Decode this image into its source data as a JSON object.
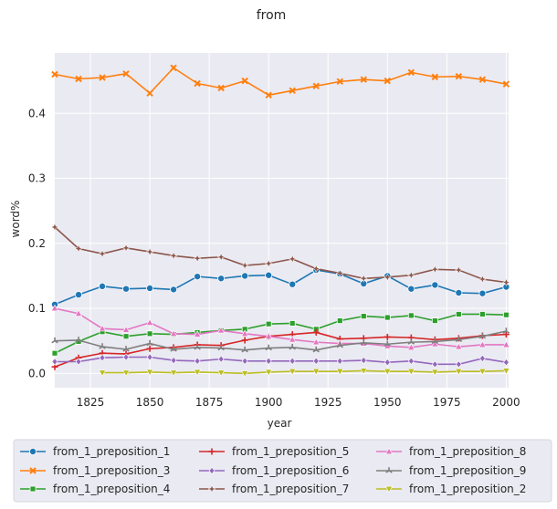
{
  "chart_data": {
    "type": "line",
    "title": "from",
    "xlabel": "year",
    "ylabel": "word%",
    "xlim": [
      1810,
      2001
    ],
    "ylim": [
      -0.022,
      0.493
    ],
    "xticks": [
      1825,
      1850,
      1875,
      1900,
      1925,
      1950,
      1975,
      2000
    ],
    "yticks": [
      0.0,
      0.1,
      0.2,
      0.3,
      0.4
    ],
    "ytick_labels": [
      "0.0",
      "0.1",
      "0.2",
      "0.3",
      "0.4"
    ],
    "grid": true,
    "background": "#eaeaf2",
    "legend_placement": "bottom-center",
    "legend_columns": 3,
    "x": [
      1810,
      1820,
      1830,
      1840,
      1850,
      1860,
      1870,
      1880,
      1890,
      1900,
      1910,
      1920,
      1930,
      1940,
      1950,
      1960,
      1970,
      1980,
      1990,
      2000
    ],
    "series": [
      {
        "name": "from_1_preposition_1",
        "color": "#1f77b4",
        "marker": "circle",
        "values": [
          0.106,
          0.121,
          0.134,
          0.13,
          0.131,
          0.129,
          0.149,
          0.146,
          0.15,
          0.151,
          0.137,
          0.159,
          0.153,
          0.138,
          0.15,
          0.13,
          0.136,
          0.124,
          0.123,
          0.133
        ]
      },
      {
        "name": "from_1_preposition_3",
        "color": "#ff7f0e",
        "marker": "x",
        "values": [
          0.46,
          0.453,
          0.455,
          0.461,
          0.431,
          0.47,
          0.446,
          0.439,
          0.45,
          0.428,
          0.435,
          0.442,
          0.449,
          0.452,
          0.45,
          0.463,
          0.456,
          0.457,
          0.452,
          0.445
        ]
      },
      {
        "name": "from_1_preposition_4",
        "color": "#2ca02c",
        "marker": "square",
        "values": [
          0.031,
          0.049,
          0.064,
          0.057,
          0.061,
          0.06,
          0.063,
          0.066,
          0.068,
          0.076,
          0.077,
          0.068,
          0.081,
          0.088,
          0.086,
          0.089,
          0.081,
          0.091,
          0.091,
          0.09
        ]
      },
      {
        "name": "from_1_preposition_5",
        "color": "#d62728",
        "marker": "plus",
        "values": [
          0.01,
          0.024,
          0.031,
          0.03,
          0.038,
          0.04,
          0.044,
          0.043,
          0.051,
          0.057,
          0.06,
          0.063,
          0.053,
          0.054,
          0.056,
          0.055,
          0.052,
          0.054,
          0.058,
          0.06
        ]
      },
      {
        "name": "from_1_preposition_6",
        "color": "#9467bd",
        "marker": "diamond",
        "values": [
          0.018,
          0.018,
          0.024,
          0.025,
          0.025,
          0.02,
          0.019,
          0.022,
          0.019,
          0.019,
          0.019,
          0.019,
          0.019,
          0.02,
          0.017,
          0.019,
          0.014,
          0.014,
          0.023,
          0.017
        ]
      },
      {
        "name": "from_1_preposition_7",
        "color": "#8c564b",
        "marker": "star",
        "values": [
          0.225,
          0.192,
          0.184,
          0.193,
          0.187,
          0.181,
          0.177,
          0.179,
          0.166,
          0.169,
          0.176,
          0.161,
          0.154,
          0.146,
          0.148,
          0.151,
          0.16,
          0.159,
          0.145,
          0.14
        ]
      },
      {
        "name": "from_1_preposition_8",
        "color": "#e377c2",
        "marker": "triangle-up",
        "values": [
          0.1,
          0.092,
          0.069,
          0.067,
          0.078,
          0.061,
          0.06,
          0.066,
          0.061,
          0.057,
          0.052,
          0.048,
          0.046,
          0.046,
          0.042,
          0.04,
          0.045,
          0.041,
          0.044,
          0.044
        ]
      },
      {
        "name": "from_1_preposition_9",
        "color": "#7f7f7f",
        "marker": "tri",
        "values": [
          0.05,
          0.051,
          0.041,
          0.037,
          0.046,
          0.037,
          0.04,
          0.039,
          0.036,
          0.039,
          0.04,
          0.036,
          0.043,
          0.047,
          0.045,
          0.048,
          0.049,
          0.052,
          0.057,
          0.065
        ]
      },
      {
        "name": "from_1_preposition_2",
        "color": "#bcbd22",
        "marker": "triangle-down",
        "values": [
          null,
          null,
          0.001,
          0.001,
          0.002,
          0.001,
          0.002,
          0.001,
          0.0,
          0.002,
          0.003,
          0.003,
          0.003,
          0.004,
          0.003,
          0.003,
          0.002,
          0.003,
          0.003,
          0.004
        ]
      }
    ]
  }
}
